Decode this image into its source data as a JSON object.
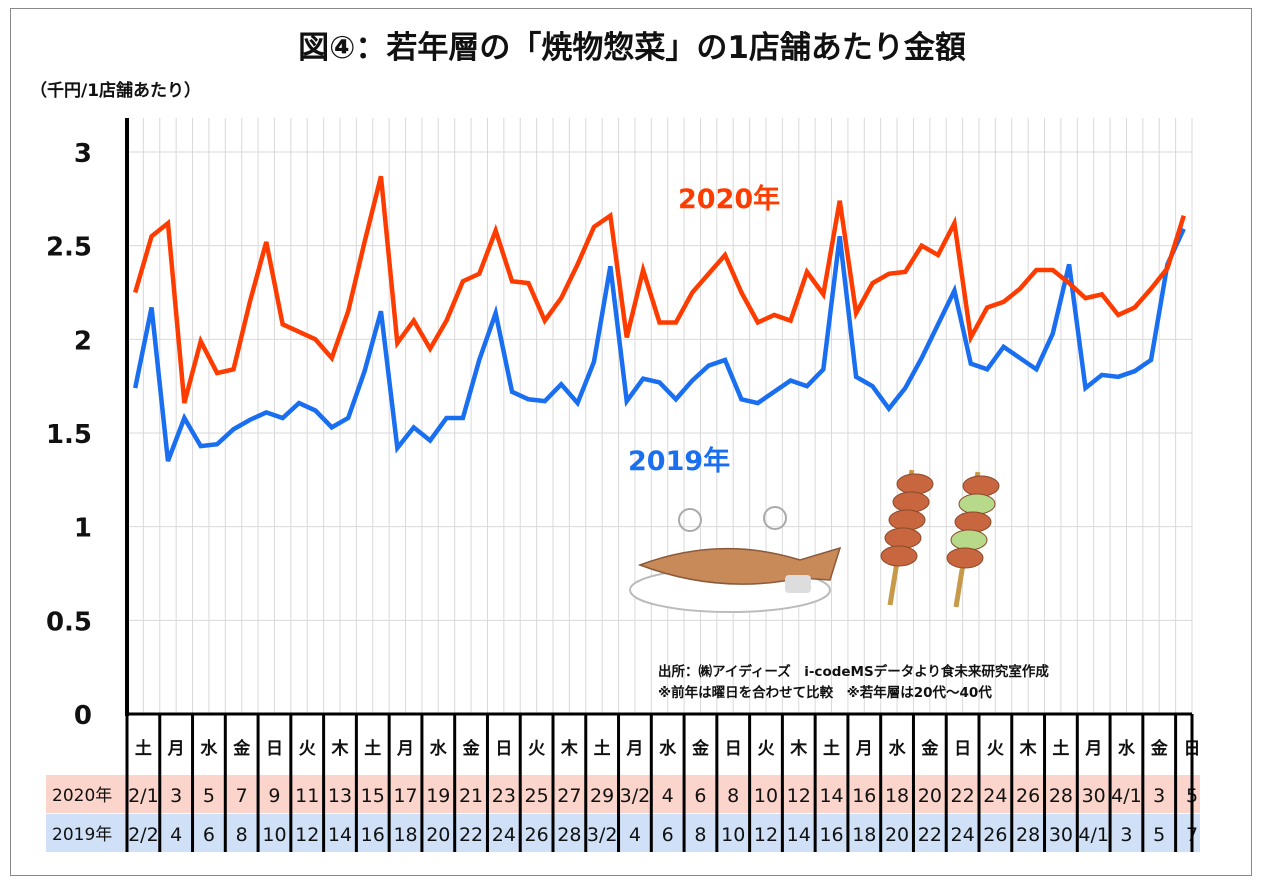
{
  "title": "図④：若年層の「焼物惣菜」の1店舗あたり金額",
  "unit_label": "（千円/1店舗あたり）",
  "source_lines": [
    "出所：㈱アイディーズ　i-codeMSデータより食未来研究室作成",
    "※前年は曜日を合わせて比較　※若年層は20代～40代"
  ],
  "colors": {
    "2020": "#ff3c00",
    "2019": "#1a6ef0",
    "row2020_bg": "#fbd5cc",
    "row2019_bg": "#cfe0f7"
  },
  "chart_data": {
    "type": "line",
    "title": "図④：若年層の「焼物惣菜」の1店舗あたり金額",
    "ylabel": "（千円/1店舗あたり）",
    "ylim": [
      0,
      3
    ],
    "yticks": [
      "0",
      "0.5",
      "1",
      "1.5",
      "2",
      "2.5",
      "3"
    ],
    "grid": true,
    "weekday_labels": [
      "土",
      "月",
      "水",
      "金",
      "日",
      "火",
      "木",
      "土",
      "月",
      "水",
      "金",
      "日",
      "火",
      "木",
      "土",
      "月",
      "水",
      "金",
      "日",
      "火",
      "木",
      "土",
      "月",
      "水",
      "金",
      "日",
      "火",
      "木",
      "土",
      "月",
      "水",
      "金",
      "日"
    ],
    "date_rows": [
      {
        "label": "2020年",
        "dates": [
          "2/1",
          "3",
          "5",
          "7",
          "9",
          "11",
          "13",
          "15",
          "17",
          "19",
          "21",
          "23",
          "25",
          "27",
          "29",
          "3/2",
          "4",
          "6",
          "8",
          "10",
          "12",
          "14",
          "16",
          "18",
          "20",
          "22",
          "24",
          "26",
          "28",
          "30",
          "4/1",
          "3",
          "5"
        ]
      },
      {
        "label": "2019年",
        "dates": [
          "2/2",
          "4",
          "6",
          "8",
          "10",
          "12",
          "14",
          "16",
          "18",
          "20",
          "22",
          "24",
          "26",
          "28",
          "3/2",
          "4",
          "6",
          "8",
          "10",
          "12",
          "14",
          "16",
          "18",
          "20",
          "22",
          "24",
          "26",
          "28",
          "30",
          "4/1",
          "3",
          "5",
          "7"
        ]
      }
    ],
    "series": [
      {
        "name": "2020年",
        "values": [
          2.25,
          2.55,
          2.62,
          1.66,
          1.99,
          1.82,
          1.84,
          2.2,
          2.52,
          2.08,
          2.04,
          2.0,
          1.9,
          2.15,
          2.52,
          2.87,
          1.98,
          2.1,
          1.95,
          2.1,
          2.31,
          2.35,
          2.58,
          2.31,
          2.3,
          2.1,
          2.22,
          2.4,
          2.6,
          2.66,
          2.01,
          2.37,
          2.09,
          2.09,
          2.25,
          2.35,
          2.45,
          2.25,
          2.09,
          2.13,
          2.1,
          2.36,
          2.24,
          2.74,
          2.14,
          2.3,
          2.35,
          2.36,
          2.5,
          2.45,
          2.62,
          2.01,
          2.17,
          2.2,
          2.27,
          2.37,
          2.37,
          2.3,
          2.22,
          2.24,
          2.13,
          2.17,
          2.27,
          2.38,
          2.66
        ]
      },
      {
        "name": "2019年",
        "values": [
          1.74,
          2.17,
          1.35,
          1.58,
          1.43,
          1.44,
          1.52,
          1.57,
          1.61,
          1.58,
          1.66,
          1.62,
          1.53,
          1.58,
          1.83,
          2.15,
          1.42,
          1.53,
          1.46,
          1.58,
          1.58,
          1.89,
          2.14,
          1.72,
          1.68,
          1.67,
          1.76,
          1.66,
          1.88,
          2.39,
          1.67,
          1.79,
          1.77,
          1.68,
          1.78,
          1.86,
          1.89,
          1.68,
          1.66,
          1.72,
          1.78,
          1.75,
          1.84,
          2.55,
          1.8,
          1.75,
          1.63,
          1.74,
          1.9,
          2.08,
          2.26,
          1.87,
          1.84,
          1.96,
          1.9,
          1.84,
          2.03,
          2.4,
          1.74,
          1.81,
          1.8,
          1.83,
          1.89,
          2.4,
          2.59
        ]
      }
    ]
  }
}
